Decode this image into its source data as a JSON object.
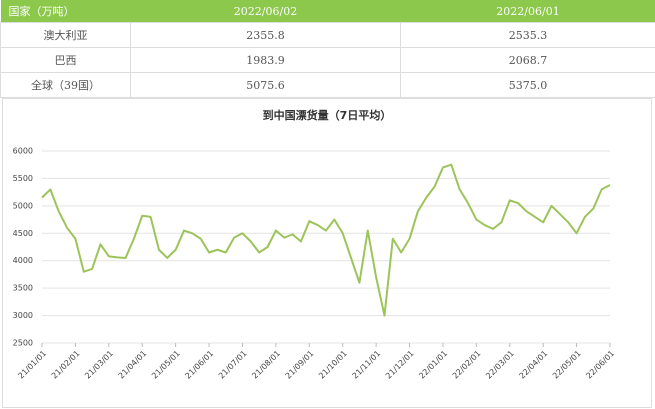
{
  "table": {
    "header": [
      "国家（万吨）",
      "2022/06/02",
      "2022/06/01"
    ],
    "rows": [
      [
        "澳大利亚",
        "2355.8",
        "2535.3"
      ],
      [
        "巴西",
        "1983.9",
        "2068.7"
      ],
      [
        "全球（39国）",
        "5075.6",
        "5375.0"
      ]
    ]
  },
  "chart_data": {
    "type": "line",
    "title": "到中国漂货量（7日平均）",
    "color": "#9cc45a",
    "grid": true,
    "ylim": [
      2500,
      6000
    ],
    "yticks": [
      2500,
      3000,
      3500,
      4000,
      4500,
      5000,
      5500,
      6000
    ],
    "categories": [
      "21/01/01",
      null,
      null,
      null,
      "21/02/01",
      null,
      null,
      null,
      "21/03/01",
      null,
      null,
      null,
      "21/04/01",
      null,
      null,
      null,
      "21/05/01",
      null,
      null,
      null,
      "21/06/01",
      null,
      null,
      null,
      "21/07/01",
      null,
      null,
      null,
      "21/08/01",
      null,
      null,
      null,
      "21/09/01",
      null,
      null,
      null,
      "21/10/01",
      null,
      null,
      null,
      "21/11/01",
      null,
      null,
      null,
      "21/12/01",
      null,
      null,
      null,
      "22/01/01",
      null,
      null,
      null,
      "22/02/01",
      null,
      null,
      null,
      "22/03/01",
      null,
      null,
      null,
      "22/04/01",
      null,
      null,
      null,
      "22/05/01",
      null,
      null,
      null,
      "22/06/01"
    ],
    "values": [
      5150,
      5300,
      4900,
      4600,
      4400,
      3800,
      3850,
      4300,
      4080,
      4060,
      4050,
      4400,
      4820,
      4800,
      4200,
      4050,
      4200,
      4550,
      4500,
      4400,
      4150,
      4200,
      4150,
      4420,
      4500,
      4350,
      4150,
      4250,
      4550,
      4420,
      4480,
      4350,
      4720,
      4650,
      4550,
      4750,
      4500,
      4050,
      3600,
      4550,
      3700,
      3000,
      4400,
      4150,
      4400,
      4900,
      5150,
      5350,
      5700,
      5750,
      5300,
      5050,
      4750,
      4650,
      4580,
      4700,
      5100,
      5050,
      4900,
      4800,
      4700,
      5000,
      4850,
      4700,
      4500,
      4800,
      4950,
      5300,
      5380
    ]
  }
}
